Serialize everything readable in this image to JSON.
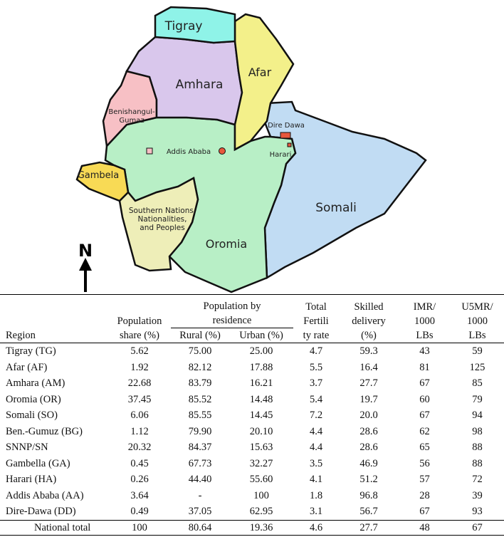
{
  "map": {
    "regions": [
      {
        "id": "tigray",
        "label": "Tigray",
        "color": "#8ff3e8"
      },
      {
        "id": "afar",
        "label": "Afar",
        "color": "#f3f08a"
      },
      {
        "id": "amhara",
        "label": "Amhara",
        "color": "#d9c7ec"
      },
      {
        "id": "benishangul",
        "label_line1": "Benishangul-",
        "label_line2": "Gumaz",
        "color": "#f7c0c5"
      },
      {
        "id": "gambela",
        "label": "Gambela",
        "color": "#f8da55"
      },
      {
        "id": "snnp",
        "label_line1": "Southern Nations,",
        "label_line2": "Nationalities,",
        "label_line3": "and Peoples",
        "color": "#eeeeb8"
      },
      {
        "id": "oromia",
        "label": "Oromia",
        "color": "#b8efc6"
      },
      {
        "id": "somali",
        "label": "Somali",
        "color": "#c1dcf3"
      }
    ],
    "cities": {
      "dire_dawa": {
        "label": "Dire Dawa",
        "color": "#e8573d"
      },
      "addis_ababa": {
        "label": "Addis Ababa",
        "color": "#e8573d"
      },
      "harari": {
        "label": "Harari",
        "color": "#e8573d"
      }
    },
    "north_label": "N"
  },
  "table": {
    "headers": {
      "region": "Region",
      "pop_share_1": "Population",
      "pop_share_2": "share (%)",
      "residence_1": "Population by",
      "residence_2": "residence",
      "rural": "Rural (%)",
      "urban": "Urban (%)",
      "tfr_1": "Total",
      "tfr_2": "Fertili",
      "tfr_3": "ty rate",
      "sd_1": "Skilled",
      "sd_2": "delivery",
      "sd_3": "(%)",
      "imr_1": "IMR/",
      "imr_2": "1000",
      "imr_3": "LBs",
      "u5_1": "U5MR/",
      "u5_2": "1000",
      "u5_3": "LBs"
    },
    "rows": [
      {
        "region": "Tigray (TG)",
        "pop_share": "5.62",
        "rural": "75.00",
        "urban": "25.00",
        "tfr": "4.7",
        "skilled": "59.3",
        "imr": "43",
        "u5mr": "59"
      },
      {
        "region": "Afar (AF)",
        "pop_share": "1.92",
        "rural": "82.12",
        "urban": "17.88",
        "tfr": "5.5",
        "skilled": "16.4",
        "imr": "81",
        "u5mr": "125"
      },
      {
        "region": "Amhara (AM)",
        "pop_share": "22.68",
        "rural": "83.79",
        "urban": "16.21",
        "tfr": "3.7",
        "skilled": "27.7",
        "imr": "67",
        "u5mr": "85"
      },
      {
        "region": "Oromia (OR)",
        "pop_share": "37.45",
        "rural": "85.52",
        "urban": "14.48",
        "tfr": "5.4",
        "skilled": "19.7",
        "imr": "60",
        "u5mr": "79"
      },
      {
        "region": "Somali (SO)",
        "pop_share": "6.06",
        "rural": "85.55",
        "urban": "14.45",
        "tfr": "7.2",
        "skilled": "20.0",
        "imr": "67",
        "u5mr": "94"
      },
      {
        "region": "Ben.-Gumuz (BG)",
        "pop_share": "1.12",
        "rural": "79.90",
        "urban": "20.10",
        "tfr": "4.4",
        "skilled": "28.6",
        "imr": "62",
        "u5mr": "98"
      },
      {
        "region": "SNNP/SN",
        "pop_share": "20.32",
        "rural": "84.37",
        "urban": "15.63",
        "tfr": "4.4",
        "skilled": "28.6",
        "imr": "65",
        "u5mr": "88"
      },
      {
        "region": "Gambella (GA)",
        "pop_share": "0.45",
        "rural": "67.73",
        "urban": "32.27",
        "tfr": "3.5",
        "skilled": "46.9",
        "imr": "56",
        "u5mr": "88"
      },
      {
        "region": "Harari (HA)",
        "pop_share": "0.26",
        "rural": "44.40",
        "urban": "55.60",
        "tfr": "4.1",
        "skilled": "51.2",
        "imr": "57",
        "u5mr": "72"
      },
      {
        "region": "Addis Ababa (AA)",
        "pop_share": "3.64",
        "rural": "-",
        "urban": "100",
        "tfr": "1.8",
        "skilled": "96.8",
        "imr": "28",
        "u5mr": "39"
      },
      {
        "region": "Dire-Dawa (DD)",
        "pop_share": "0.49",
        "rural": "37.05",
        "urban": "62.95",
        "tfr": "3.1",
        "skilled": "56.7",
        "imr": "67",
        "u5mr": "93"
      }
    ],
    "total": {
      "region": "National total",
      "pop_share": "100",
      "rural": "80.64",
      "urban": "19.36",
      "tfr": "4.6",
      "skilled": "27.7",
      "imr": "48",
      "u5mr": "67"
    }
  }
}
